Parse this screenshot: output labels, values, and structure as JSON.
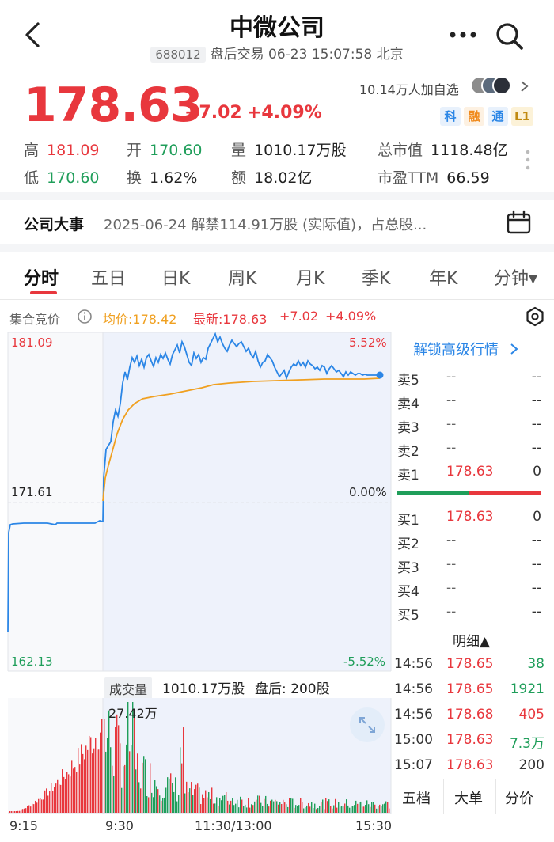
{
  "header": {
    "title": "中微公司",
    "code": "688012",
    "status": "盘后交易 06-23 15:07:58 北京"
  },
  "quote": {
    "price": "178.63",
    "change": "+7.02",
    "change_pct": "+4.09%",
    "watchers": "10.14万人加自选",
    "badges": [
      "科",
      "融",
      "通",
      "L1"
    ],
    "high_label": "高",
    "high": "181.09",
    "open_label": "开",
    "open": "170.60",
    "volume_label": "量",
    "volume": "1010.17万股",
    "mktcap_label": "总市值",
    "mktcap": "1118.48亿",
    "low_label": "低",
    "low": "170.60",
    "turnover_label": "换",
    "turnover": "1.62%",
    "amount_label": "额",
    "amount": "18.02亿",
    "pe_label": "市盈TTM",
    "pe": "66.59"
  },
  "news": {
    "label": "公司大事",
    "text": "2025-06-24 解禁114.91万股 (实际值)，占总股..."
  },
  "tabs": [
    "分时",
    "五日",
    "日K",
    "周K",
    "月K",
    "季K",
    "年K",
    "分钟▾"
  ],
  "infobar": {
    "auction": "集合竞价",
    "avg": "均价:178.42",
    "latest": "最新:178.63",
    "change": "+7.02",
    "pct": "+4.09%"
  },
  "axis": {
    "top": "181.09",
    "mid": "171.61",
    "bottom": "162.13",
    "top_pct": "5.52%",
    "mid_pct": "0.00%",
    "bottom_pct": "-5.52%"
  },
  "volume_bar": {
    "label": "成交量",
    "value": "1010.17万股",
    "after": "盘后: 200股",
    "peak": "27.42万"
  },
  "time_labels": [
    "9:15",
    "9:30",
    "11:30/13:00",
    "15:30"
  ],
  "orderbook": {
    "unlock": "解锁高级行情",
    "asks": [
      {
        "label": "卖5",
        "price": "--",
        "vol": "--"
      },
      {
        "label": "卖4",
        "price": "--",
        "vol": "--"
      },
      {
        "label": "卖3",
        "price": "--",
        "vol": "--"
      },
      {
        "label": "卖2",
        "price": "--",
        "vol": "--"
      },
      {
        "label": "卖1",
        "price": "178.63",
        "vol": "0"
      }
    ],
    "bids": [
      {
        "label": "买1",
        "price": "178.63",
        "vol": "0"
      },
      {
        "label": "买2",
        "price": "--",
        "vol": "--"
      },
      {
        "label": "买3",
        "price": "--",
        "vol": "--"
      },
      {
        "label": "买4",
        "price": "--",
        "vol": "--"
      },
      {
        "label": "买5",
        "price": "--",
        "vol": "--"
      }
    ]
  },
  "details": {
    "title": "明细▲",
    "rows": [
      {
        "time": "14:56",
        "price": "178.65",
        "vol": "38",
        "dir": "green"
      },
      {
        "time": "14:56",
        "price": "178.65",
        "vol": "1921",
        "dir": "green"
      },
      {
        "time": "14:56",
        "price": "178.68",
        "vol": "405",
        "dir": "red"
      },
      {
        "time": "15:00",
        "price": "178.63",
        "vol": "7.3万",
        "dir": "green"
      },
      {
        "time": "15:07",
        "price": "178.63",
        "vol": "200",
        "dir": "dark"
      }
    ]
  },
  "bottom_tabs": [
    "五档",
    "大单",
    "分价"
  ],
  "colors": {
    "up": "#e8373d",
    "down": "#1f9e5a",
    "price_line": "#2b86e6",
    "avg_line": "#f0a020"
  }
}
